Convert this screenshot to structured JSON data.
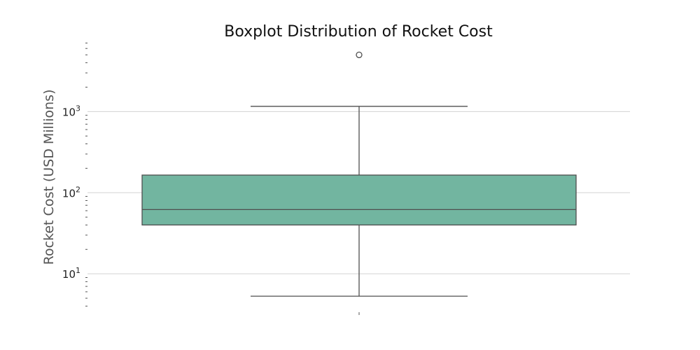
{
  "chart_data": {
    "type": "boxplot",
    "title": "Boxplot Distribution of Rocket Cost",
    "ylabel": "Rocket Cost (USD Millions)",
    "xlabel": "",
    "yscale": "log",
    "ylim": [
      3.5,
      7500
    ],
    "grid": "horizontal",
    "y_ticks": [
      {
        "value": 10,
        "base": "10",
        "exp": "1"
      },
      {
        "value": 100,
        "base": "10",
        "exp": "2"
      },
      {
        "value": 1000,
        "base": "10",
        "exp": "3"
      }
    ],
    "box": {
      "whisker_low": 5.3,
      "q1": 40,
      "median": 62,
      "q3": 165,
      "whisker_high": 1160,
      "outliers": [
        5000
      ]
    },
    "colors": {
      "box_fill": "#72b5a0",
      "lines": "#4f4f4f",
      "grid": "#d3d3d3"
    }
  }
}
